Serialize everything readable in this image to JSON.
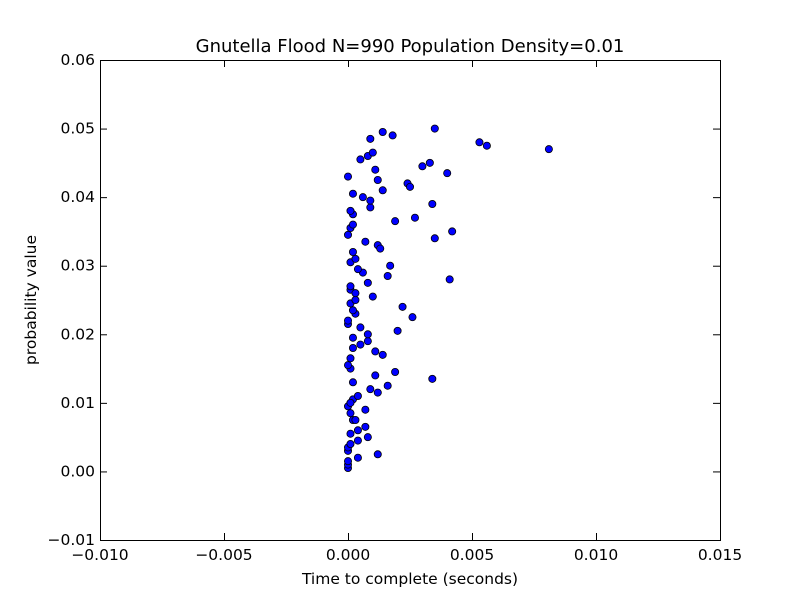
{
  "chart_data": {
    "type": "scatter",
    "title": "Gnutella Flood N=990 Population Density=0.01",
    "xlabel": "Time to complete (seconds)",
    "ylabel": "probability value",
    "xlim": [
      -0.01,
      0.015
    ],
    "ylim": [
      -0.01,
      0.06
    ],
    "xticks": [
      -0.01,
      -0.005,
      0.0,
      0.005,
      0.01,
      0.015
    ],
    "xtick_labels": [
      "−0.010",
      "−0.005",
      "0.000",
      "0.005",
      "0.010",
      "0.015"
    ],
    "yticks": [
      -0.01,
      0.0,
      0.01,
      0.02,
      0.03,
      0.04,
      0.05,
      0.06
    ],
    "ytick_labels": [
      "−0.01",
      "0.00",
      "0.01",
      "0.02",
      "0.03",
      "0.04",
      "0.05",
      "0.06"
    ],
    "grid": false,
    "marker_color": "#0000ff",
    "series": [
      {
        "points": [
          [
            0.0,
            0.0005
          ],
          [
            0.0,
            0.001
          ],
          [
            0.0,
            0.0015
          ],
          [
            0.0,
            0.003
          ],
          [
            0.0,
            0.0035
          ],
          [
            0.0001,
            0.004
          ],
          [
            0.0002,
            0.0075
          ],
          [
            0.0001,
            0.0085
          ],
          [
            0.0,
            0.0095
          ],
          [
            0.0002,
            0.0105
          ],
          [
            0.0001,
            0.01
          ],
          [
            0.0003,
            0.0075
          ],
          [
            0.0001,
            0.0055
          ],
          [
            0.0004,
            0.006
          ],
          [
            0.0004,
            0.0045
          ],
          [
            0.0004,
            0.002
          ],
          [
            0.0007,
            0.0065
          ],
          [
            0.0008,
            0.005
          ],
          [
            0.0007,
            0.009
          ],
          [
            0.0004,
            0.011
          ],
          [
            0.0012,
            0.0025
          ],
          [
            0.0009,
            0.012
          ],
          [
            0.0012,
            0.0115
          ],
          [
            0.0011,
            0.014
          ],
          [
            0.0016,
            0.0125
          ],
          [
            0.0019,
            0.0145
          ],
          [
            0.0002,
            0.013
          ],
          [
            0.0001,
            0.015
          ],
          [
            0.0,
            0.0155
          ],
          [
            0.0001,
            0.0165
          ],
          [
            0.0002,
            0.018
          ],
          [
            0.0002,
            0.0195
          ],
          [
            0.0005,
            0.0185
          ],
          [
            0.0008,
            0.019
          ],
          [
            0.0008,
            0.02
          ],
          [
            0.0011,
            0.0175
          ],
          [
            0.0014,
            0.017
          ],
          [
            0.002,
            0.0205
          ],
          [
            0.0,
            0.0215
          ],
          [
            0.0,
            0.022
          ],
          [
            0.0003,
            0.023
          ],
          [
            0.0002,
            0.0235
          ],
          [
            0.0001,
            0.0245
          ],
          [
            0.0003,
            0.025
          ],
          [
            0.0005,
            0.021
          ],
          [
            0.0001,
            0.0265
          ],
          [
            0.0001,
            0.027
          ],
          [
            0.0003,
            0.026
          ],
          [
            0.0008,
            0.0275
          ],
          [
            0.001,
            0.0255
          ],
          [
            0.0016,
            0.0285
          ],
          [
            0.0017,
            0.03
          ],
          [
            0.0006,
            0.029
          ],
          [
            0.0004,
            0.0295
          ],
          [
            0.0001,
            0.0305
          ],
          [
            0.0003,
            0.031
          ],
          [
            0.0002,
            0.032
          ],
          [
            0.0007,
            0.0335
          ],
          [
            0.0012,
            0.033
          ],
          [
            0.0013,
            0.0325
          ],
          [
            0.0,
            0.0345
          ],
          [
            0.0001,
            0.0355
          ],
          [
            0.0002,
            0.036
          ],
          [
            0.0002,
            0.0375
          ],
          [
            0.0001,
            0.038
          ],
          [
            0.0006,
            0.04
          ],
          [
            0.0009,
            0.0385
          ],
          [
            0.0009,
            0.0395
          ],
          [
            0.0002,
            0.0405
          ],
          [
            0.0,
            0.043
          ],
          [
            0.0014,
            0.041
          ],
          [
            0.0012,
            0.0425
          ],
          [
            0.0011,
            0.044
          ],
          [
            0.0005,
            0.0455
          ],
          [
            0.0008,
            0.046
          ],
          [
            0.001,
            0.0465
          ],
          [
            0.0009,
            0.0485
          ],
          [
            0.0014,
            0.0495
          ],
          [
            0.0018,
            0.049
          ],
          [
            0.0024,
            0.042
          ],
          [
            0.0025,
            0.0415
          ],
          [
            0.003,
            0.0445
          ],
          [
            0.0033,
            0.045
          ],
          [
            0.004,
            0.0435
          ],
          [
            0.0034,
            0.039
          ],
          [
            0.0027,
            0.037
          ],
          [
            0.0019,
            0.0365
          ],
          [
            0.0035,
            0.034
          ],
          [
            0.0042,
            0.035
          ],
          [
            0.0035,
            0.05
          ],
          [
            0.0041,
            0.028
          ],
          [
            0.0022,
            0.024
          ],
          [
            0.0026,
            0.0225
          ],
          [
            0.0034,
            0.0135
          ],
          [
            0.0053,
            0.048
          ],
          [
            0.0056,
            0.0475
          ],
          [
            0.0081,
            0.047
          ]
        ]
      }
    ]
  }
}
